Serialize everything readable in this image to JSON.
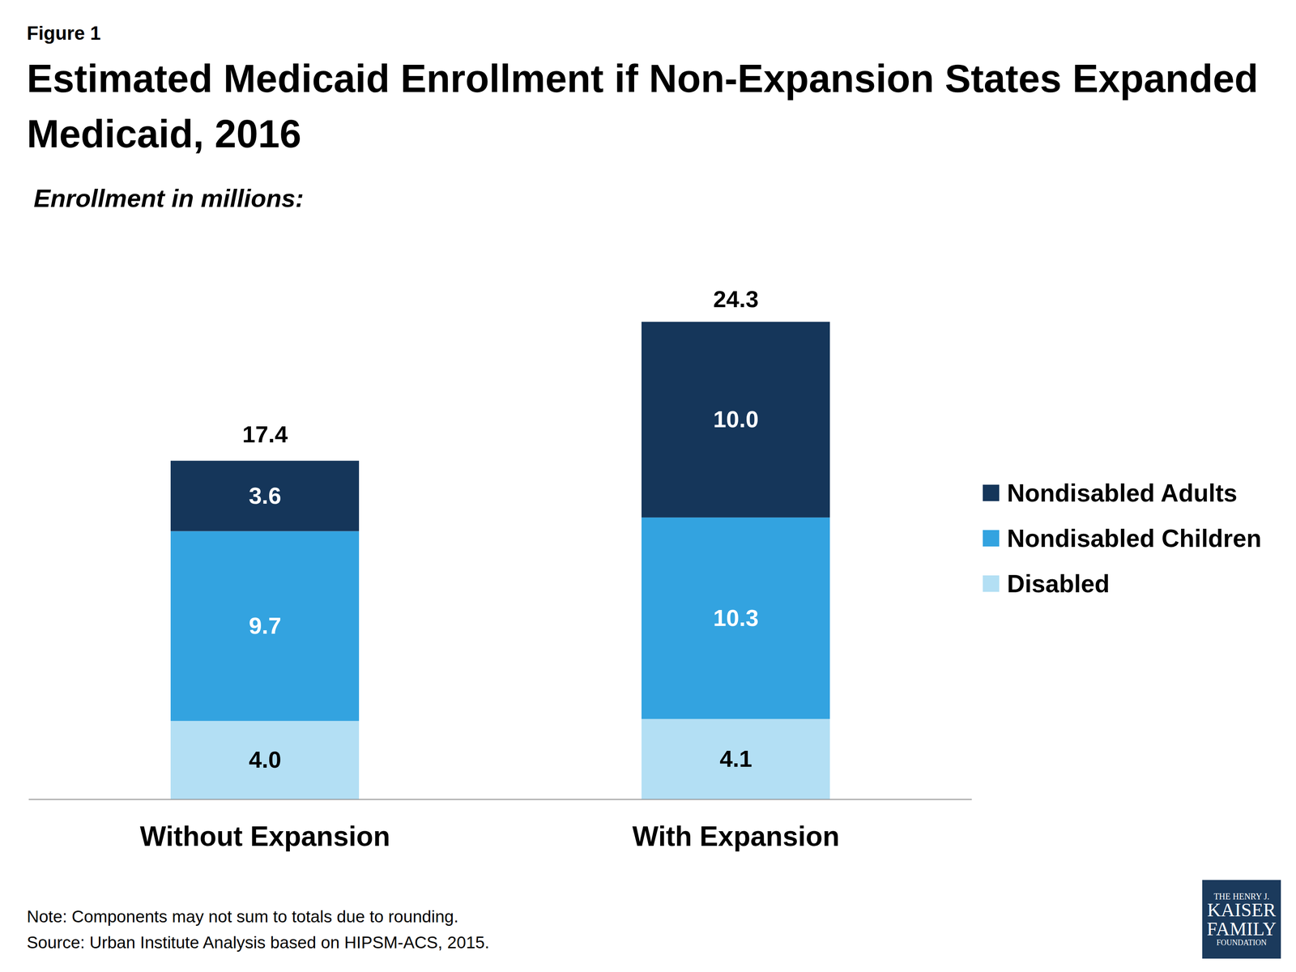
{
  "chart_data": {
    "type": "bar",
    "stacked": true,
    "data_labels": true,
    "tick_labels": "x",
    "legend": "right",
    "figure_label": "Figure 1",
    "title": "Estimated Medicaid Enrollment if Non-Expansion States Expanded Medicaid, 2016",
    "subtitle": "Enrollment in millions:",
    "categories": [
      "Without Expansion",
      "With Expansion"
    ],
    "series": [
      {
        "name": "Disabled",
        "color": "#b3dff4",
        "values": [
          4.0,
          4.1
        ],
        "value_labels": [
          "4.0",
          "4.1"
        ]
      },
      {
        "name": "Nondisabled Children",
        "color": "#33a3e0",
        "values": [
          9.7,
          10.3
        ]
      },
      {
        "name": "Nondisabled Adults",
        "color": "#15365a",
        "values": [
          3.6,
          10.0
        ],
        "value_labels": [
          "3.6",
          "10.0"
        ]
      }
    ],
    "totals": [
      17.4,
      24.3
    ],
    "note": "Note: Components may not sum to totals due to rounding.",
    "source": "Source: Urban Institute Analysis based on HIPSM-ACS, 2015.",
    "logo": [
      "THE HENRY J.",
      "KAISER",
      "FAMILY",
      "FOUNDATION"
    ]
  }
}
